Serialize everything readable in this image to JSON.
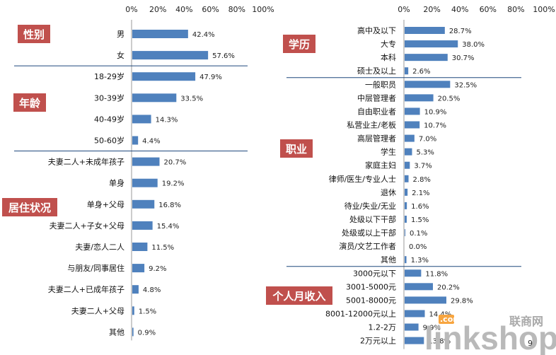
{
  "chart_data": [
    {
      "type": "bar",
      "orientation": "horizontal",
      "title": "",
      "xlim": [
        0,
        100
      ],
      "x_ticks": [
        "0%",
        "20%",
        "40%",
        "60%",
        "80%",
        "100%"
      ],
      "groups": [
        {
          "name": "性别",
          "items": [
            {
              "label": "男",
              "value": 42.4,
              "text": "42.4%"
            },
            {
              "label": "女",
              "value": 57.6,
              "text": "57.6%"
            }
          ]
        },
        {
          "name": "年龄",
          "items": [
            {
              "label": "18-29岁",
              "value": 47.9,
              "text": "47.9%"
            },
            {
              "label": "30-39岁",
              "value": 33.5,
              "text": "33.5%"
            },
            {
              "label": "40-49岁",
              "value": 14.3,
              "text": "14.3%"
            },
            {
              "label": "50-60岁",
              "value": 4.4,
              "text": "4.4%"
            }
          ]
        },
        {
          "name": "居住状况",
          "items": [
            {
              "label": "夫妻二人+未成年孩子",
              "value": 20.7,
              "text": "20.7%"
            },
            {
              "label": "单身",
              "value": 19.2,
              "text": "19.2%"
            },
            {
              "label": "单身+父母",
              "value": 16.8,
              "text": "16.8%"
            },
            {
              "label": "夫妻二人+子女+父母",
              "value": 15.4,
              "text": "15.4%"
            },
            {
              "label": "夫妻/恋人二人",
              "value": 11.5,
              "text": "11.5%"
            },
            {
              "label": "与朋友/同事居住",
              "value": 9.2,
              "text": "9.2%"
            },
            {
              "label": "夫妻二人+已成年孩子",
              "value": 4.8,
              "text": "4.8%"
            },
            {
              "label": "夫妻二人+父母",
              "value": 1.5,
              "text": "1.5%"
            },
            {
              "label": "其他",
              "value": 0.9,
              "text": "0.9%"
            }
          ]
        }
      ]
    },
    {
      "type": "bar",
      "orientation": "horizontal",
      "title": "",
      "xlim": [
        0,
        100
      ],
      "x_ticks": [
        "0%",
        "20%",
        "40%",
        "60%",
        "80%",
        "100%"
      ],
      "groups": [
        {
          "name": "学历",
          "items": [
            {
              "label": "高中及以下",
              "value": 28.7,
              "text": "28.7%"
            },
            {
              "label": "大专",
              "value": 38.0,
              "text": "38.0%"
            },
            {
              "label": "本科",
              "value": 30.7,
              "text": "30.7%"
            },
            {
              "label": "硕士及以上",
              "value": 2.6,
              "text": "2.6%"
            }
          ]
        },
        {
          "name": "职业",
          "items": [
            {
              "label": "一般职员",
              "value": 32.5,
              "text": "32.5%"
            },
            {
              "label": "中层管理者",
              "value": 20.5,
              "text": "20.5%"
            },
            {
              "label": "自由职业者",
              "value": 10.9,
              "text": "10.9%"
            },
            {
              "label": "私营业主/老板",
              "value": 10.7,
              "text": "10.7%"
            },
            {
              "label": "高层管理者",
              "value": 7.0,
              "text": "7.0%"
            },
            {
              "label": "学生",
              "value": 5.3,
              "text": "5.3%"
            },
            {
              "label": "家庭主妇",
              "value": 3.7,
              "text": "3.7%"
            },
            {
              "label": "律师/医生/专业人士",
              "value": 2.8,
              "text": "2.8%"
            },
            {
              "label": "退休",
              "value": 2.1,
              "text": "2.1%"
            },
            {
              "label": "待业/失业/无业",
              "value": 1.6,
              "text": "1.6%"
            },
            {
              "label": "处级以下干部",
              "value": 1.5,
              "text": "1.5%"
            },
            {
              "label": "处级或以上干部",
              "value": 0.1,
              "text": "0.1%"
            },
            {
              "label": "演员/文艺工作者",
              "value": 0.0,
              "text": "0.0%"
            },
            {
              "label": "其他",
              "value": 1.3,
              "text": "1.3%"
            }
          ]
        },
        {
          "name": "个人月收入",
          "items": [
            {
              "label": "3000元以下",
              "value": 11.8,
              "text": "11.8%"
            },
            {
              "label": "3001-5000元",
              "value": 20.2,
              "text": "20.2%"
            },
            {
              "label": "5001-8000元",
              "value": 29.8,
              "text": "29.8%"
            },
            {
              "label": "8001-12000元以上",
              "value": 14.4,
              "text": "14.4%"
            },
            {
              "label": "1.2-2万",
              "value": 9.9,
              "text": "9.9%"
            },
            {
              "label": "2万元以上",
              "value": 13.8,
              "text": "13.8%"
            }
          ]
        }
      ]
    }
  ],
  "watermark": {
    "brand": "linkshop",
    "domain_tag": ".com",
    "cn_name": "联商网"
  },
  "page_number": "9",
  "colors": {
    "bar": "#4f81bd",
    "badge": "#c0504d",
    "separator": "#1f497d"
  }
}
